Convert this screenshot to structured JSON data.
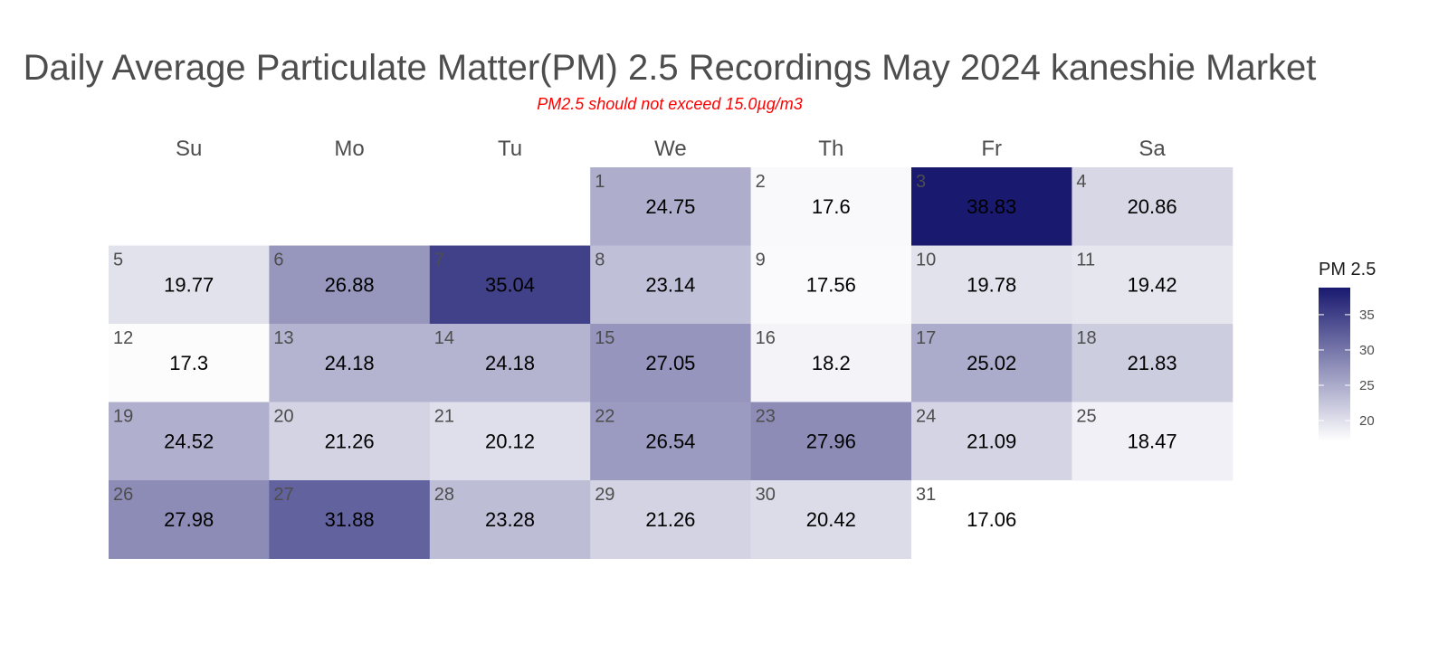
{
  "chart_data": {
    "type": "heatmap",
    "title": "Daily Average Particulate Matter(PM) 2.5 Recordings May 2024 kaneshie Market",
    "subtitle": "PM2.5 should not exceed 15.0µg/m3",
    "weekdays": [
      "Su",
      "Mo",
      "Tu",
      "We",
      "Th",
      "Fr",
      "Sa"
    ],
    "first_weekday_index": 3,
    "days": [
      {
        "day": 1,
        "value": 24.75
      },
      {
        "day": 2,
        "value": 17.6
      },
      {
        "day": 3,
        "value": 38.83
      },
      {
        "day": 4,
        "value": 20.86
      },
      {
        "day": 5,
        "value": 19.77
      },
      {
        "day": 6,
        "value": 26.88
      },
      {
        "day": 7,
        "value": 35.04
      },
      {
        "day": 8,
        "value": 23.14
      },
      {
        "day": 9,
        "value": 17.56
      },
      {
        "day": 10,
        "value": 19.78
      },
      {
        "day": 11,
        "value": 19.42
      },
      {
        "day": 12,
        "value": 17.3
      },
      {
        "day": 13,
        "value": 24.18
      },
      {
        "day": 14,
        "value": 24.18
      },
      {
        "day": 15,
        "value": 27.05
      },
      {
        "day": 16,
        "value": 18.2
      },
      {
        "day": 17,
        "value": 25.02
      },
      {
        "day": 18,
        "value": 21.83
      },
      {
        "day": 19,
        "value": 24.52
      },
      {
        "day": 20,
        "value": 21.26
      },
      {
        "day": 21,
        "value": 20.12
      },
      {
        "day": 22,
        "value": 26.54
      },
      {
        "day": 23,
        "value": 27.96
      },
      {
        "day": 24,
        "value": 21.09
      },
      {
        "day": 25,
        "value": 18.47
      },
      {
        "day": 26,
        "value": 27.98
      },
      {
        "day": 27,
        "value": 31.88
      },
      {
        "day": 28,
        "value": 23.28
      },
      {
        "day": 29,
        "value": 21.26
      },
      {
        "day": 30,
        "value": 20.42
      },
      {
        "day": 31,
        "value": 17.06
      }
    ],
    "legend": {
      "title": "PM 2.5",
      "ticks": [
        20,
        25,
        30,
        35
      ],
      "range": [
        17.06,
        38.83
      ],
      "color_low": "#ffffff",
      "color_high": "#191970"
    }
  }
}
